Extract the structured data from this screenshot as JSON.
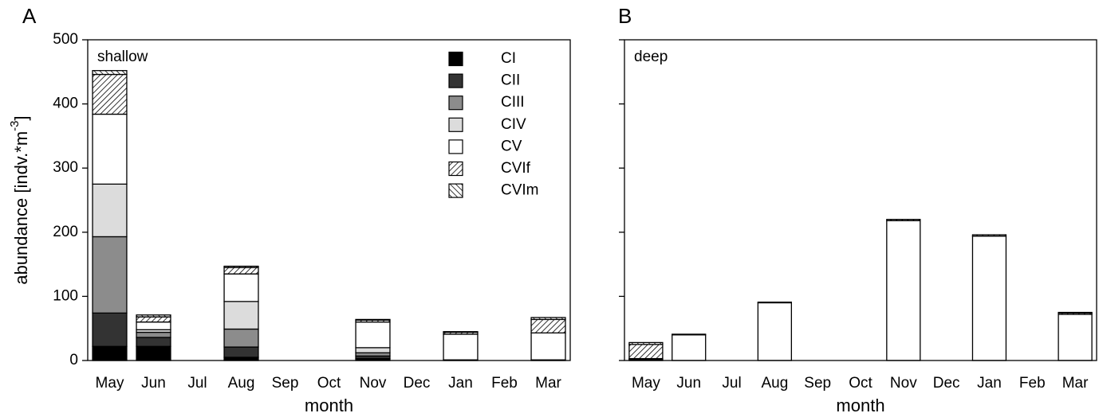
{
  "chart_data": [
    {
      "type": "stacked_bar",
      "panel_label": "A",
      "annotation": "shallow",
      "ylabel": "abundance [indv.*m",
      "ylabel_sup": "-3",
      "ylabel_end": "]",
      "xlabel": "month",
      "categories": [
        "May",
        "Jun",
        "Jul",
        "Aug",
        "Sep",
        "Oct",
        "Nov",
        "Dec",
        "Jan",
        "Feb",
        "Mar"
      ],
      "ylim": [
        0,
        500
      ],
      "yticks": [
        0,
        100,
        200,
        300,
        400,
        500
      ],
      "show_ytick_labels": true,
      "legend": "upper right",
      "series": [
        {
          "name": "CI",
          "color": "#000000",
          "values": [
            22,
            22,
            null,
            5,
            null,
            null,
            3,
            null,
            0,
            null,
            0
          ]
        },
        {
          "name": "CII",
          "color": "#333333",
          "values": [
            52,
            14,
            null,
            16,
            null,
            null,
            4,
            null,
            0,
            null,
            0
          ]
        },
        {
          "name": "CIII",
          "color": "#8c8c8c",
          "values": [
            119,
            8,
            null,
            28,
            null,
            null,
            5,
            null,
            0,
            null,
            0
          ]
        },
        {
          "name": "CIV",
          "color": "#dcdcdc",
          "values": [
            82,
            4,
            null,
            43,
            null,
            null,
            8,
            null,
            1,
            null,
            1
          ]
        },
        {
          "name": "CV",
          "color": "#ffffff",
          "values": [
            109,
            12,
            null,
            43,
            null,
            null,
            40,
            null,
            40,
            null,
            42
          ]
        },
        {
          "name": "CVIf",
          "color": "#ffffff",
          "hatch": "/",
          "values": [
            62,
            8,
            null,
            10,
            null,
            null,
            3,
            null,
            3,
            null,
            21
          ]
        },
        {
          "name": "CVIm",
          "color": "#ffffff",
          "hatch": "\\",
          "values": [
            6,
            3,
            null,
            2,
            null,
            null,
            1,
            null,
            1,
            null,
            3
          ]
        }
      ]
    },
    {
      "type": "stacked_bar",
      "panel_label": "B",
      "annotation": "deep",
      "xlabel": "month",
      "categories": [
        "May",
        "Jun",
        "Jul",
        "Aug",
        "Sep",
        "Oct",
        "Nov",
        "Dec",
        "Jan",
        "Feb",
        "Mar"
      ],
      "ylim": [
        0,
        500
      ],
      "yticks": [
        0,
        100,
        200,
        300,
        400,
        500
      ],
      "show_ytick_labels": false,
      "series": [
        {
          "color": "#000000",
          "values": [
            1,
            0,
            null,
            0,
            null,
            null,
            0,
            null,
            0,
            null,
            0
          ]
        },
        {
          "color": "#333333",
          "values": [
            1,
            0,
            null,
            0,
            null,
            null,
            0,
            null,
            0,
            null,
            0
          ]
        },
        {
          "color": "#8c8c8c",
          "values": [
            0,
            0,
            null,
            0,
            null,
            null,
            0,
            null,
            0,
            null,
            0
          ]
        },
        {
          "color": "#dcdcdc",
          "values": [
            0,
            0,
            null,
            0,
            null,
            null,
            0,
            null,
            0,
            null,
            0
          ]
        },
        {
          "color": "#ffffff",
          "values": [
            1,
            40,
            null,
            90,
            null,
            null,
            218,
            null,
            194,
            null,
            72
          ]
        },
        {
          "color": "#ffffff",
          "hatch": "/",
          "values": [
            22,
            1,
            null,
            1,
            null,
            null,
            2,
            null,
            2,
            null,
            2
          ]
        },
        {
          "color": "#ffffff",
          "hatch": "\\",
          "values": [
            3,
            0,
            null,
            0,
            null,
            null,
            0,
            null,
            0,
            null,
            1
          ]
        }
      ]
    }
  ]
}
